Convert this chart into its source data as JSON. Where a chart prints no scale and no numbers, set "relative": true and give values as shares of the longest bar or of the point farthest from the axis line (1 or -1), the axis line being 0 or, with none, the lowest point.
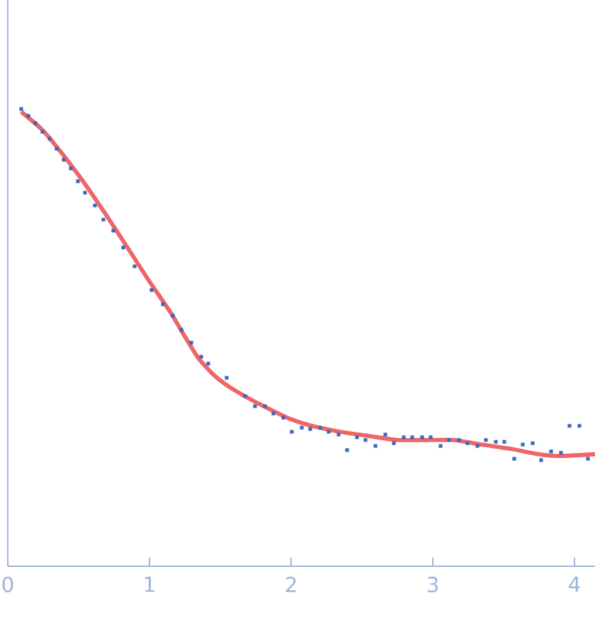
{
  "chart_data": {
    "type": "scatter",
    "relative": true,
    "xlim": [
      0,
      4.145
    ],
    "xticks": [
      0,
      1,
      2,
      3,
      4
    ],
    "marker": "square",
    "series": [
      {
        "color": "#3a68c0",
        "x": [
          0.095,
          0.145,
          0.195,
          0.245,
          0.295,
          0.345,
          0.395,
          0.445,
          0.495,
          0.545,
          0.615,
          0.675,
          0.745,
          0.815,
          0.895,
          1.015,
          1.095,
          1.165,
          1.225,
          1.295,
          1.365,
          1.415,
          1.545,
          1.675,
          1.745,
          1.815,
          1.875,
          1.945,
          2.005,
          2.075,
          2.135,
          2.205,
          2.265,
          2.335,
          2.395,
          2.465,
          2.525,
          2.595,
          2.665,
          2.725,
          2.795,
          2.855,
          2.925,
          2.985,
          3.055,
          3.115,
          3.185,
          3.245,
          3.315,
          3.375,
          3.445,
          3.505,
          3.575,
          3.635,
          3.705,
          3.765,
          3.835,
          3.905,
          3.965,
          4.035,
          4.095
        ],
        "values": [
          1.0,
          0.985,
          0.969,
          0.95,
          0.935,
          0.913,
          0.889,
          0.87,
          0.842,
          0.817,
          0.789,
          0.758,
          0.734,
          0.697,
          0.656,
          0.604,
          0.573,
          0.548,
          0.517,
          0.489,
          0.458,
          0.443,
          0.412,
          0.372,
          0.35,
          0.35,
          0.334,
          0.325,
          0.294,
          0.303,
          0.3,
          0.303,
          0.294,
          0.288,
          0.254,
          0.282,
          0.276,
          0.263,
          0.288,
          0.269,
          0.282,
          0.282,
          0.282,
          0.282,
          0.263,
          0.276,
          0.276,
          0.269,
          0.263,
          0.276,
          0.272,
          0.272,
          0.235,
          0.266,
          0.269,
          0.232,
          0.251,
          0.248,
          0.307,
          0.307,
          0.235
        ]
      },
      {
        "type": "line",
        "marker": "none",
        "color": "#ee6666",
        "x": [
          0.095,
          0.245,
          0.395,
          0.545,
          0.695,
          0.845,
          0.995,
          1.145,
          1.245,
          1.345,
          1.445,
          1.545,
          1.695,
          1.845,
          1.995,
          2.145,
          2.345,
          2.545,
          2.745,
          2.945,
          3.145,
          3.345,
          3.545,
          3.745,
          3.895,
          4.145
        ],
        "values": [
          0.994,
          0.954,
          0.898,
          0.836,
          0.768,
          0.697,
          0.625,
          0.557,
          0.505,
          0.455,
          0.421,
          0.396,
          0.368,
          0.344,
          0.322,
          0.307,
          0.294,
          0.285,
          0.276,
          0.276,
          0.276,
          0.266,
          0.257,
          0.245,
          0.241,
          0.245
        ]
      }
    ]
  }
}
